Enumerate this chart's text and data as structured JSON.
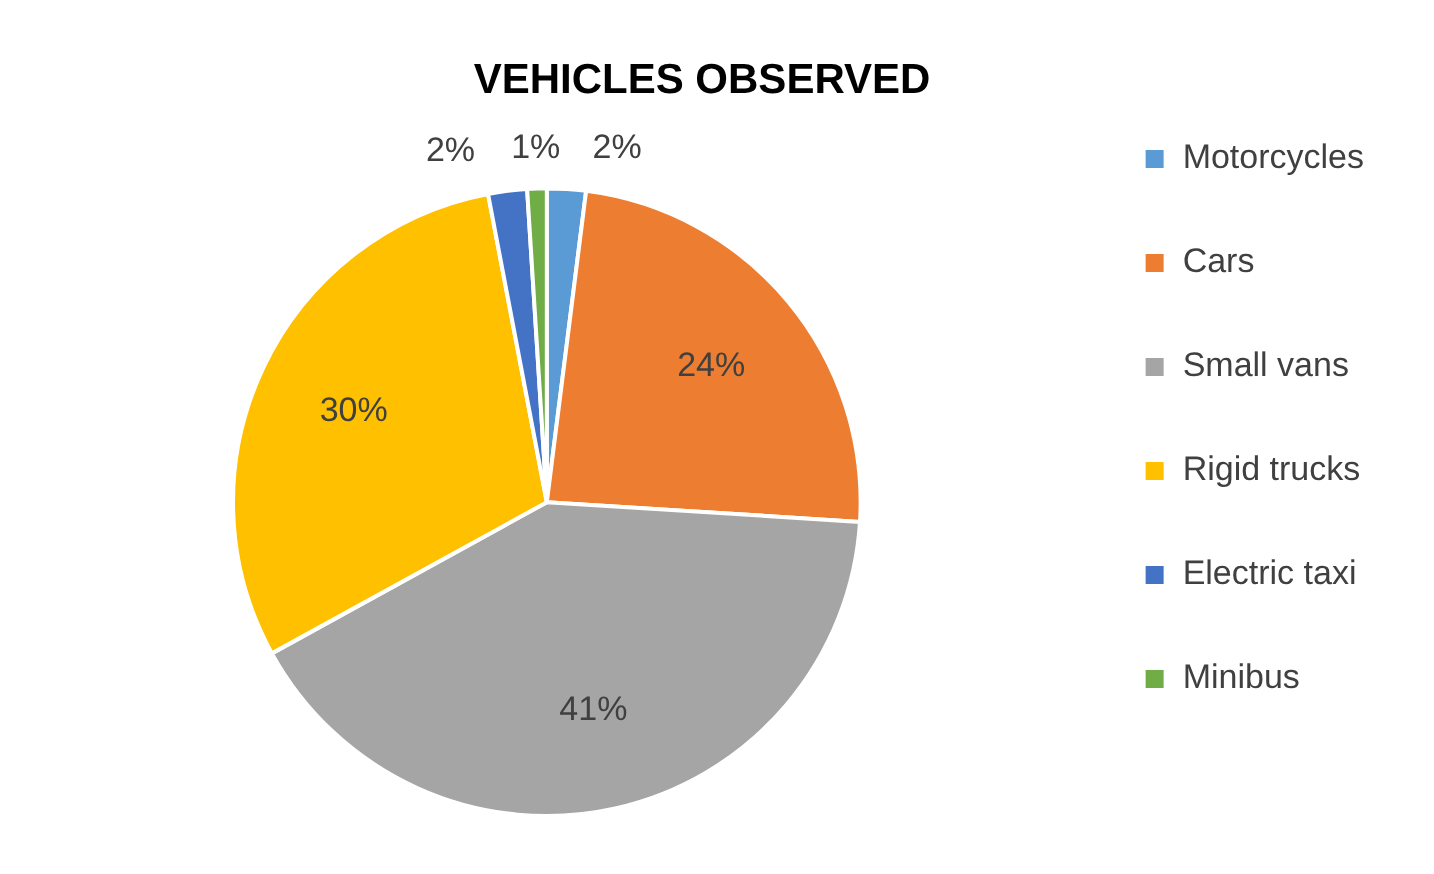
{
  "chart_data": {
    "type": "pie",
    "title": "VEHICLES OBSERVED",
    "categories": [
      "Motorcycles",
      "Cars",
      "Small vans",
      "Rigid trucks",
      "Electric taxi",
      "Minibus"
    ],
    "values": [
      2,
      24,
      41,
      30,
      2,
      1
    ],
    "colors": [
      "#5b9bd5",
      "#ed7d31",
      "#a5a5a5",
      "#ffc000",
      "#4472c4",
      "#70ad47"
    ],
    "value_labels": [
      "2%",
      "24%",
      "41%",
      "30%",
      "2%",
      "1%"
    ],
    "legend": "right"
  }
}
